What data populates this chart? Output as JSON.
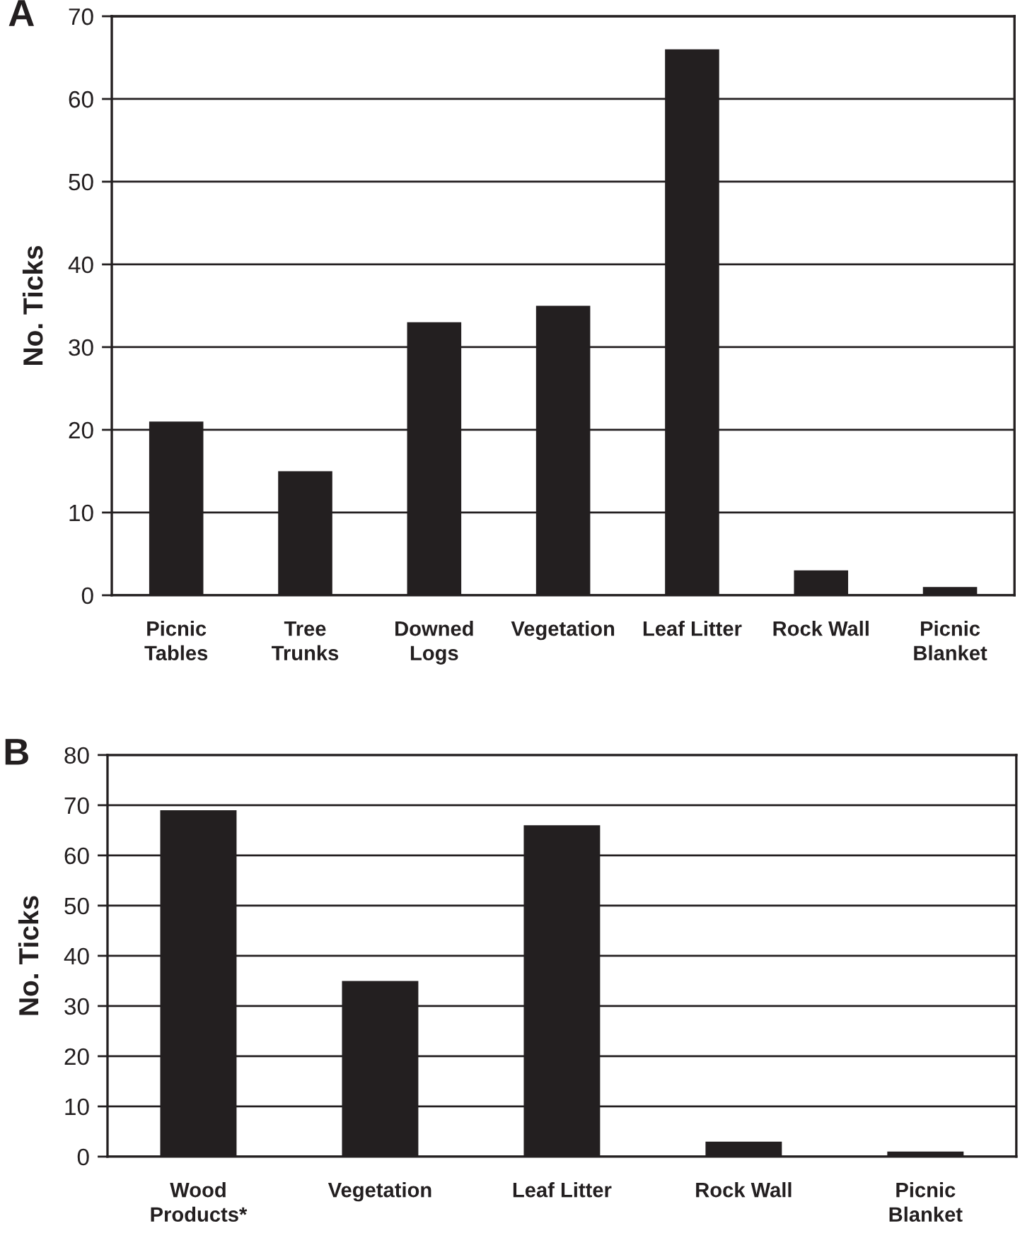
{
  "chart_data": [
    {
      "type": "bar",
      "title": "A",
      "ylabel": "No. Ticks",
      "categories": [
        "Picnic\nTables",
        "Tree\nTrunks",
        "Downed\nLogs",
        "Vegetation",
        "Leaf Litter",
        "Rock Wall",
        "Picnic\nBlanket"
      ],
      "values": [
        21,
        15,
        33,
        35,
        66,
        3,
        1
      ],
      "color": "#231f20",
      "ylim": [
        0,
        70
      ],
      "yticks": [
        0,
        10,
        20,
        30,
        40,
        50,
        60,
        70
      ],
      "grid": "y"
    },
    {
      "type": "bar",
      "title": "B",
      "ylabel": "No. Ticks",
      "categories": [
        "Wood\nProducts*",
        "Vegetation",
        "Leaf Litter",
        "Rock Wall",
        "Picnic\nBlanket"
      ],
      "values": [
        69,
        35,
        66,
        3,
        1
      ],
      "color": "#231f20",
      "ylim": [
        0,
        80
      ],
      "yticks": [
        0,
        10,
        20,
        30,
        40,
        50,
        60,
        70,
        80
      ],
      "grid": "y"
    }
  ]
}
